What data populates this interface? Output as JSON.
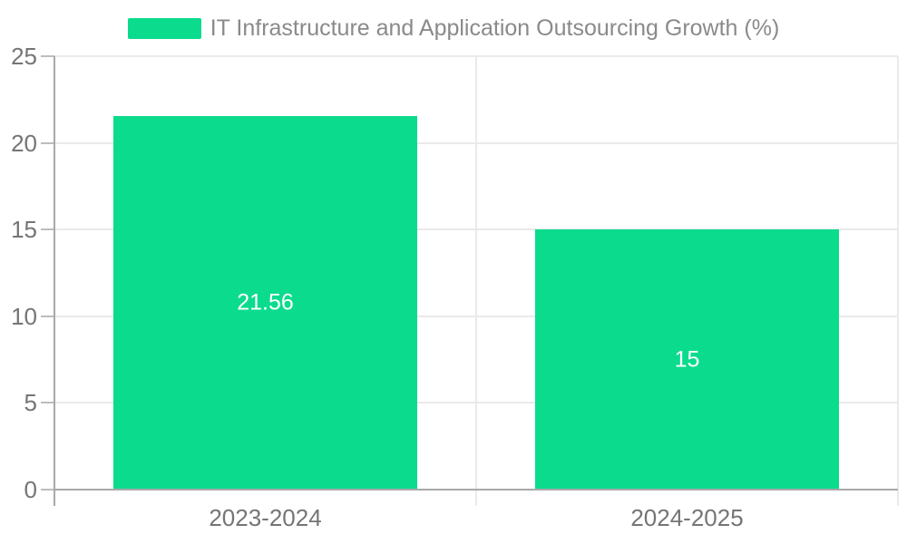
{
  "chart_data": {
    "type": "bar",
    "title": "",
    "legend": "IT Infrastructure and Application Outsourcing Growth (%)",
    "legend_position": "top-center",
    "categories": [
      "2023-2024",
      "2024-2025"
    ],
    "values": [
      21.56,
      15
    ],
    "value_labels": [
      "21.56",
      "15"
    ],
    "ylim": [
      0,
      25
    ],
    "yticks": [
      0,
      5,
      10,
      15,
      20,
      25
    ],
    "ytick_labels": [
      "0",
      "5",
      "10",
      "15",
      "20",
      "25"
    ],
    "grid": true,
    "xlabel": "",
    "ylabel": "",
    "colors": {
      "bar": "#0bdb8d",
      "bar_label": "#ffffff",
      "axis_line": "#a9a9a9",
      "grid_line": "#eaeaea",
      "tick_line": "#bdbdbd",
      "axis_text": "#757575",
      "legend_text": "#8a8a8a"
    }
  }
}
